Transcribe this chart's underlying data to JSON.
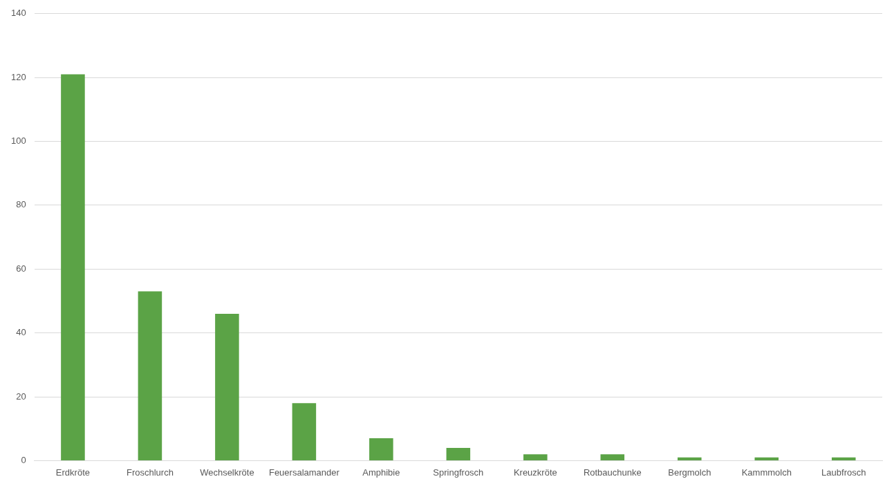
{
  "chart_data": {
    "type": "bar",
    "categories": [
      "Erdkröte",
      "Froschlurch",
      "Wechselkröte",
      "Feuersalamander",
      "Amphibie",
      "Springfrosch",
      "Kreuzkröte",
      "Rotbauchunke",
      "Bergmolch",
      "Kammmolch",
      "Laubfrosch"
    ],
    "values": [
      121,
      53,
      46,
      18,
      7,
      4,
      2,
      2,
      1,
      1,
      1
    ],
    "color": "#5ba346",
    "ylim": [
      0,
      140
    ],
    "yticks": [
      0,
      20,
      40,
      60,
      80,
      100,
      120,
      140
    ],
    "grid": "y",
    "legend": false
  }
}
